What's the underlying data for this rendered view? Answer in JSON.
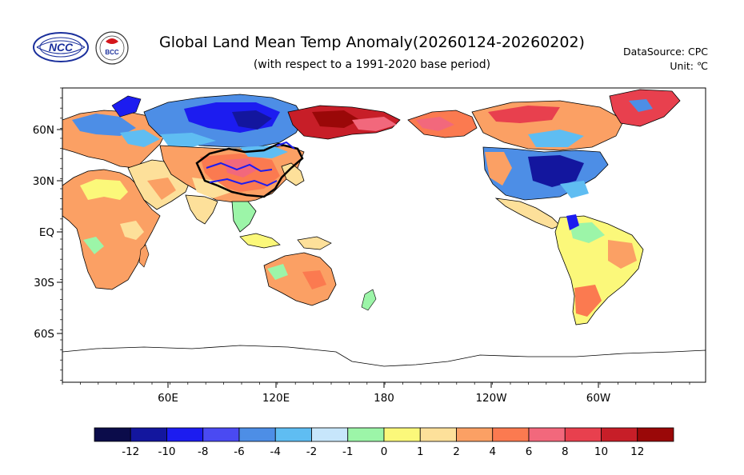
{
  "header": {
    "title": "Global Land Mean Temp Anomaly(20260124-20260202)",
    "subtitle": "(with respect to a 1991-2020 base period)",
    "datasource": "DataSource:  CPC",
    "unit": "Unit:  ℃"
  },
  "logos": {
    "ncc_text": "NCC",
    "bcc_text": "BCC"
  },
  "axes": {
    "lon_ticks": [
      "60E",
      "120E",
      "180",
      "120W",
      "60W"
    ],
    "lat_ticks": [
      "60N",
      "30N",
      "EQ",
      "30S",
      "60S"
    ]
  },
  "colorbar": {
    "labels": [
      "-12",
      "-10",
      "-8",
      "-6",
      "-4",
      "-2",
      "-1",
      "0",
      "1",
      "2",
      "4",
      "6",
      "8",
      "10",
      "12"
    ],
    "colors": [
      "#0b0c4a",
      "#13169e",
      "#1c1cf0",
      "#4a4af2",
      "#4d8ee6",
      "#5fbdf2",
      "#c7e6fb",
      "#9cf5a8",
      "#fbf87a",
      "#fde09a",
      "#fba064",
      "#fb7a50",
      "#f2687c",
      "#e8404e",
      "#c71e28",
      "#9a0808"
    ]
  },
  "map_regions": [
    {
      "name": "siberia-cold",
      "color": "#1c1cf0"
    },
    {
      "name": "east-asia-warm",
      "color": "#fb7a50"
    },
    {
      "name": "eastern-us-cold",
      "color": "#13169e"
    },
    {
      "name": "alaska-warm",
      "color": "#c71e28"
    },
    {
      "name": "africa-warm",
      "color": "#fba064"
    },
    {
      "name": "south-america-mixed",
      "color": "#fbf87a"
    },
    {
      "name": "australia-warm",
      "color": "#fba064"
    }
  ]
}
